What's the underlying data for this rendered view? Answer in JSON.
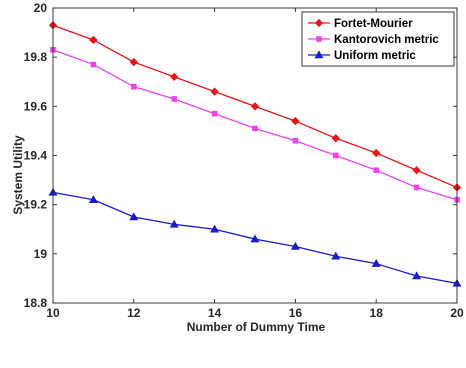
{
  "chart_data": {
    "type": "line",
    "title": "",
    "xlabel": "Number of Dummy Time",
    "ylabel": "System Utility",
    "xlim": [
      10,
      20
    ],
    "ylim": [
      18.8,
      20
    ],
    "xticks": [
      10,
      12,
      14,
      16,
      18,
      20
    ],
    "yticks": [
      18.8,
      19,
      19.2,
      19.4,
      19.6,
      19.8,
      20
    ],
    "xtick_labels": [
      "10",
      "12",
      "14",
      "16",
      "18",
      "20"
    ],
    "ytick_labels": [
      "18.8",
      "19",
      "19.2",
      "19.4",
      "19.6",
      "19.8",
      "20"
    ],
    "grid": false,
    "legend_position": "top-right",
    "x": [
      10,
      11,
      12,
      13,
      14,
      15,
      16,
      17,
      18,
      19,
      20
    ],
    "series": [
      {
        "name": "Fortet-Mourier",
        "color": "#e8141a",
        "marker": "diamond",
        "values": [
          19.93,
          19.87,
          19.78,
          19.72,
          19.66,
          19.6,
          19.54,
          19.47,
          19.41,
          19.34,
          19.27
        ]
      },
      {
        "name": "Kantorovich metric",
        "color": "#f040f0",
        "marker": "square",
        "values": [
          19.83,
          19.77,
          19.68,
          19.63,
          19.57,
          19.51,
          19.46,
          19.4,
          19.34,
          19.27,
          19.22
        ]
      },
      {
        "name": "Uniform metric",
        "color": "#1a1ad0",
        "marker": "triangle",
        "values": [
          19.25,
          19.22,
          19.15,
          19.12,
          19.1,
          19.06,
          19.03,
          18.99,
          18.96,
          18.91,
          18.88
        ]
      }
    ]
  }
}
